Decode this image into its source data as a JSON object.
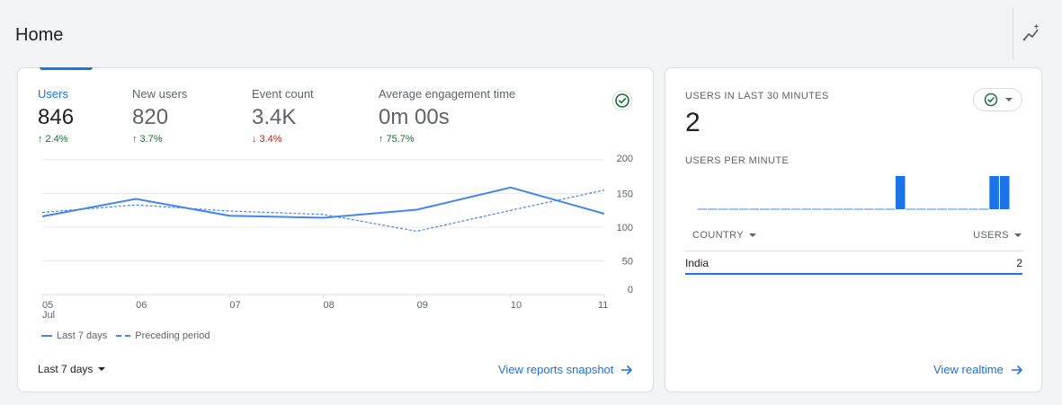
{
  "header": {
    "title": "Home",
    "insights_icon": "insights-icon"
  },
  "metrics": [
    {
      "label": "Users",
      "value": "846",
      "change": "2.4%",
      "direction": "up",
      "active": true
    },
    {
      "label": "New users",
      "value": "820",
      "change": "3.7%",
      "direction": "up",
      "active": false
    },
    {
      "label": "Event count",
      "value": "3.4K",
      "change": "3.4%",
      "direction": "down",
      "active": false
    },
    {
      "label": "Average engagement time",
      "value": "0m 00s",
      "change": "75.7%",
      "direction": "up",
      "active": false
    }
  ],
  "chart_data": {
    "type": "line",
    "categories": [
      "05",
      "06",
      "07",
      "08",
      "09",
      "10",
      "11"
    ],
    "x_sublabel": "Jul",
    "series": [
      {
        "name": "Last 7 days",
        "style": "solid",
        "values": [
          116,
          142,
          117,
          114,
          126,
          159,
          120
        ]
      },
      {
        "name": "Preceding period",
        "style": "dashed",
        "values": [
          122,
          133,
          124,
          119,
          94,
          125,
          155
        ]
      }
    ],
    "y_ticks": [
      200,
      150,
      100,
      50,
      0
    ],
    "ylim": [
      0,
      200
    ],
    "grid": true,
    "legend": "bottom-left"
  },
  "legend": {
    "last": "Last 7 days",
    "preceding": "Preceding period"
  },
  "footer": {
    "date_range": "Last 7 days",
    "snapshot_link": "View reports snapshot"
  },
  "realtime": {
    "title": "USERS IN LAST 30 MINUTES",
    "value": "2",
    "subtitle": "USERS PER MINUTE",
    "per_minute": [
      0,
      0,
      0,
      0,
      0,
      0,
      0,
      0,
      0,
      0,
      0,
      0,
      0,
      0,
      0,
      0,
      0,
      0,
      0,
      1,
      0,
      0,
      0,
      0,
      0,
      0,
      0,
      0,
      1,
      1
    ],
    "table": {
      "col_country": "COUNTRY",
      "col_users": "USERS",
      "rows": [
        {
          "country": "India",
          "users": "2"
        }
      ]
    },
    "link": "View realtime"
  },
  "colors": {
    "accent": "#1a73e8",
    "line": "#4285f4",
    "up": "#137333",
    "down": "#c5221f"
  }
}
